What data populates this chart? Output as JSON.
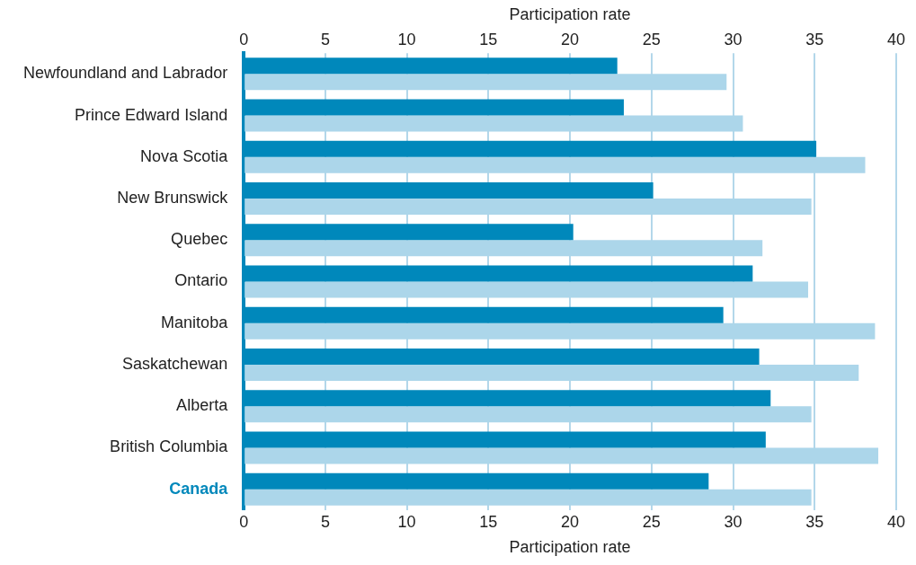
{
  "chart_data": {
    "type": "bar",
    "orientation": "horizontal",
    "xlabel": "Participation rate",
    "x2label": "Participation rate",
    "categories": [
      "Newfoundland and Labrador",
      "Prince Edward Island",
      "Nova Scotia",
      "New Brunswick",
      "Quebec",
      "Ontario",
      "Manitoba",
      "Saskatchewan",
      "Alberta",
      "British Columbia",
      "Canada"
    ],
    "series": [
      {
        "color": "#0088bb",
        "values": [
          22.9,
          23.3,
          35.1,
          25.1,
          20.2,
          31.2,
          29.4,
          31.6,
          32.3,
          32.0,
          28.5
        ]
      },
      {
        "color": "#acd6ea",
        "values": [
          29.6,
          30.6,
          38.1,
          34.8,
          31.8,
          34.6,
          38.7,
          37.7,
          34.8,
          38.9,
          34.8
        ]
      }
    ],
    "xlim": [
      0,
      40
    ],
    "xticks": [
      0,
      5,
      10,
      15,
      20,
      25,
      30,
      35,
      40
    ],
    "x2lim": [
      0,
      40
    ],
    "x2ticks": [
      0,
      5,
      10,
      15,
      20,
      25,
      30,
      35,
      40
    ],
    "grid": "x",
    "legend": false
  }
}
